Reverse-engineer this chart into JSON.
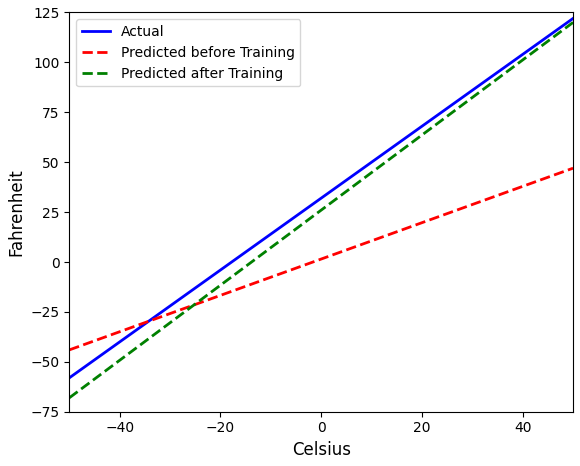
{
  "celsius_range": [
    -50,
    50
  ],
  "actual_label": "Actual",
  "actual_color": "#0000ff",
  "actual_linewidth": 2.0,
  "pred_before_label": "Predicted before Training",
  "pred_before_color": "#ff0000",
  "pred_before_linewidth": 2.0,
  "pred_after_label": "Predicted after Training",
  "pred_after_color": "#008000",
  "pred_after_linewidth": 2.0,
  "actual_slope": 1.8,
  "actual_intercept": 32.0,
  "pred_before_slope": 0.91,
  "pred_before_intercept": 1.5,
  "pred_after_slope": 1.88,
  "pred_after_intercept": 26.0,
  "xlabel": "Celsius",
  "ylabel": "Fahrenheit",
  "xlim": [
    -50,
    50
  ],
  "ylim": [
    -75,
    125
  ],
  "xticks": [
    -40,
    -20,
    0,
    20,
    40
  ],
  "yticks": [
    -75,
    -50,
    -25,
    0,
    25,
    50,
    75,
    100,
    125
  ],
  "background_color": "#ffffff",
  "legend_loc": "upper left",
  "legend_fontsize": 10
}
